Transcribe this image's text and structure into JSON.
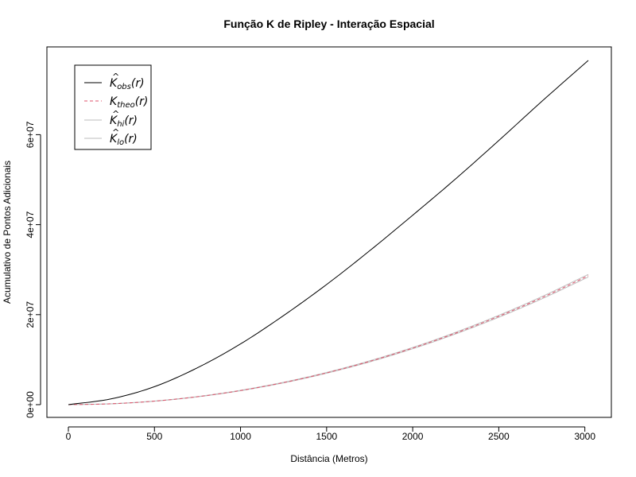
{
  "chart_data": {
    "type": "line",
    "title": "Função K de Ripley - Interação Espacial",
    "xlabel": "Distância (Metros)",
    "ylabel": "Acumulativo de Pontos Adicionais",
    "xlim": [
      0,
      3020
    ],
    "ylim": [
      0,
      76500000
    ],
    "x_ticks": [
      0,
      500,
      1000,
      1500,
      2000,
      2500,
      3000
    ],
    "x_tick_labels": [
      "0",
      "500",
      "1000",
      "1500",
      "2000",
      "2500",
      "3000"
    ],
    "y_ticks": [
      0,
      20000000,
      40000000,
      60000000
    ],
    "y_tick_labels": [
      "0e+00",
      "2e+07",
      "4e+07",
      "6e+07"
    ],
    "grid": false,
    "legend_position": "top-left",
    "series": [
      {
        "key": "obs",
        "name_main": "K",
        "name_sub": "obs",
        "name_suffix": "(r)",
        "hat": true,
        "color": "#000000",
        "dash": "solid",
        "x": [
          0,
          250,
          500,
          750,
          1000,
          1250,
          1500,
          1750,
          2000,
          2250,
          2500,
          2750,
          3020
        ],
        "y": [
          0,
          1300000,
          4000000,
          8200000,
          13500000,
          19800000,
          26700000,
          34200000,
          42100000,
          50200000,
          58700000,
          67400000,
          76500000
        ]
      },
      {
        "key": "theo",
        "name_main": "K",
        "name_sub": "theo",
        "name_suffix": "(r)",
        "hat": false,
        "color": "#df536b",
        "dash": "dashed",
        "x": [
          0,
          250,
          500,
          750,
          1000,
          1250,
          1500,
          1750,
          2000,
          2250,
          2500,
          2750,
          3020
        ],
        "y": [
          0,
          196000,
          785000,
          1767000,
          3141000,
          4909000,
          7069000,
          9621000,
          12566000,
          15904000,
          19635000,
          23758000,
          28652000
        ]
      },
      {
        "key": "hi",
        "name_main": "K",
        "name_sub": "hi",
        "name_suffix": "(r)",
        "hat": true,
        "color": "#bebebe",
        "dash": "solid",
        "x": [
          0,
          250,
          500,
          750,
          1000,
          1250,
          1500,
          1750,
          2000,
          2250,
          2500,
          2750,
          3020
        ],
        "y": [
          0,
          205000,
          805000,
          1800000,
          3190000,
          4980000,
          7160000,
          9740000,
          12710000,
          16080000,
          19850000,
          24010000,
          28950000
        ]
      },
      {
        "key": "lo",
        "name_main": "K",
        "name_sub": "lo",
        "name_suffix": "(r)",
        "hat": true,
        "color": "#bebebe",
        "dash": "solid",
        "x": [
          0,
          250,
          500,
          750,
          1000,
          1250,
          1500,
          1750,
          2000,
          2250,
          2500,
          2750,
          3020
        ],
        "y": [
          0,
          188000,
          765000,
          1735000,
          3095000,
          4840000,
          6980000,
          9500000,
          12420000,
          15730000,
          19420000,
          23510000,
          28360000
        ]
      }
    ]
  }
}
